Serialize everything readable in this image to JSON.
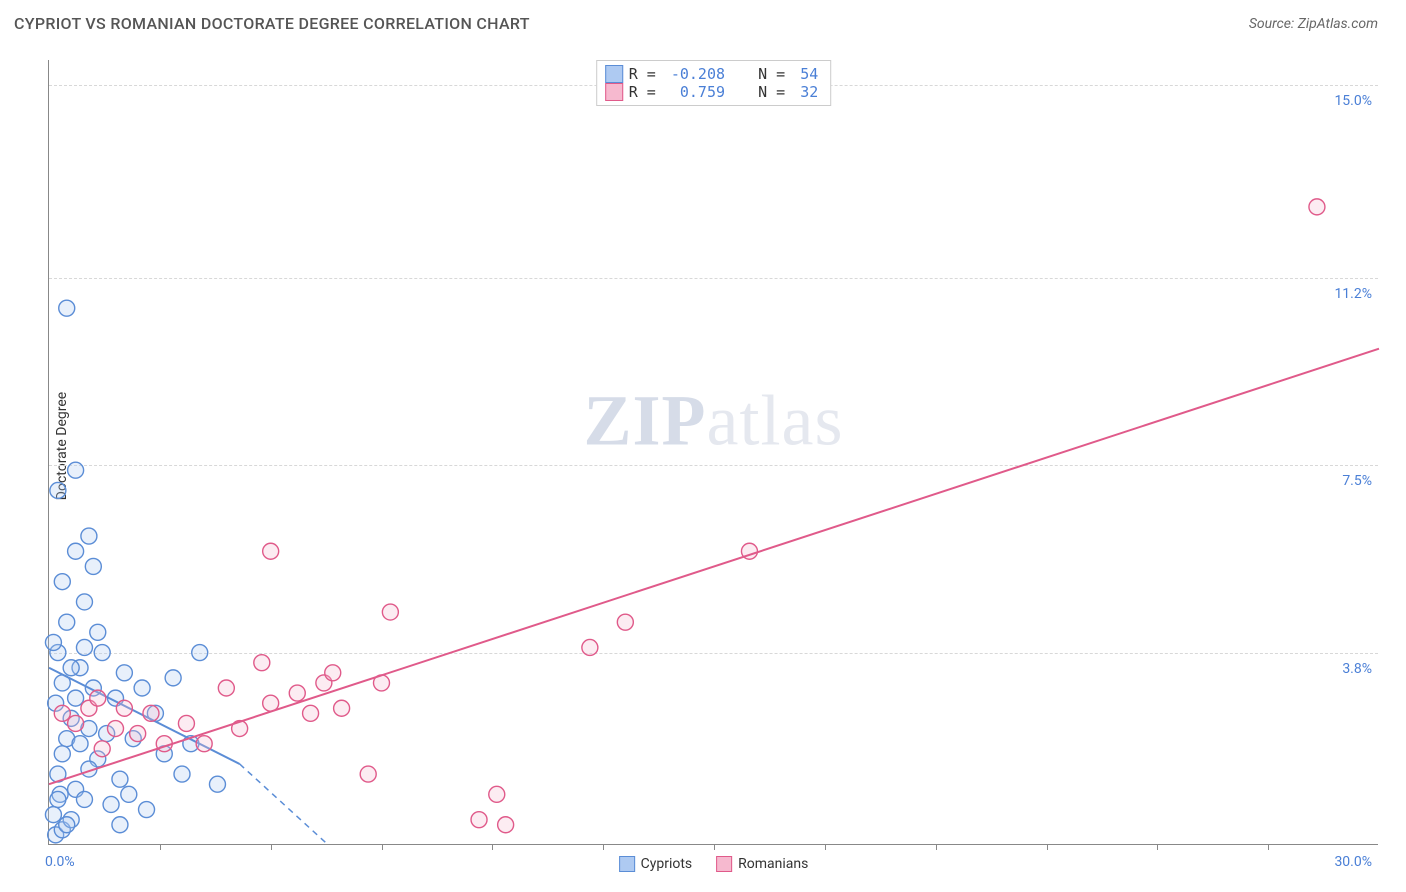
{
  "header": {
    "title": "CYPRIOT VS ROMANIAN DOCTORATE DEGREE CORRELATION CHART",
    "source": "Source: ZipAtlas.com"
  },
  "watermark": {
    "prefix": "ZIP",
    "suffix": "atlas"
  },
  "chart": {
    "type": "scatter",
    "y_axis_label": "Doctorate Degree",
    "xlim": [
      0,
      30
    ],
    "ylim": [
      0,
      15.5
    ],
    "x_origin_label": "0.0%",
    "x_max_label": "30.0%",
    "y_ticks": [
      {
        "v": 3.8,
        "label": "3.8%"
      },
      {
        "v": 7.5,
        "label": "7.5%"
      },
      {
        "v": 11.2,
        "label": "11.2%"
      },
      {
        "v": 15.0,
        "label": "15.0%"
      }
    ],
    "x_tick_positions": [
      2.5,
      5,
      7.5,
      10,
      12.5,
      15,
      17.5,
      20,
      22.5,
      25,
      27.5
    ],
    "gridline_color": "#d8d8d8",
    "axis_color": "#888888",
    "background_color": "#ffffff",
    "marker_radius": 8,
    "marker_fill_opacity": 0.28,
    "marker_stroke_width": 1.4,
    "series": [
      {
        "key": "cypriots",
        "label": "Cypriots",
        "color": "#5b8dd6",
        "fill": "#aecaf2",
        "R": "-0.208",
        "N": "54",
        "trend": {
          "x1": 0,
          "y1": 3.5,
          "x2": 4.3,
          "y2": 1.6,
          "dash_x2": 6.3,
          "dash_y2": 0
        },
        "points": [
          [
            0.15,
            0.2
          ],
          [
            0.3,
            0.3
          ],
          [
            0.1,
            0.6
          ],
          [
            0.25,
            1.0
          ],
          [
            0.5,
            0.5
          ],
          [
            0.2,
            1.4
          ],
          [
            0.3,
            1.8
          ],
          [
            0.6,
            1.1
          ],
          [
            0.4,
            2.1
          ],
          [
            0.8,
            0.9
          ],
          [
            0.5,
            2.5
          ],
          [
            0.15,
            2.8
          ],
          [
            0.6,
            2.9
          ],
          [
            0.9,
            2.3
          ],
          [
            0.3,
            3.2
          ],
          [
            0.7,
            3.5
          ],
          [
            0.2,
            3.8
          ],
          [
            1.1,
            1.7
          ],
          [
            1.3,
            2.2
          ],
          [
            1.0,
            3.1
          ],
          [
            1.4,
            0.8
          ],
          [
            1.6,
            1.3
          ],
          [
            1.2,
            3.8
          ],
          [
            1.5,
            2.9
          ],
          [
            1.8,
            1.0
          ],
          [
            1.9,
            2.1
          ],
          [
            2.2,
            0.7
          ],
          [
            1.1,
            4.2
          ],
          [
            0.4,
            4.4
          ],
          [
            0.8,
            4.8
          ],
          [
            0.3,
            5.2
          ],
          [
            1.0,
            5.5
          ],
          [
            0.6,
            5.8
          ],
          [
            0.9,
            6.1
          ],
          [
            0.2,
            7.0
          ],
          [
            0.6,
            7.4
          ],
          [
            3.0,
            1.4
          ],
          [
            3.4,
            3.8
          ],
          [
            3.2,
            2.0
          ],
          [
            2.8,
            3.3
          ],
          [
            3.8,
            1.2
          ],
          [
            0.4,
            10.6
          ],
          [
            2.1,
            3.1
          ],
          [
            2.4,
            2.6
          ],
          [
            1.7,
            3.4
          ],
          [
            0.7,
            2.0
          ],
          [
            0.9,
            1.5
          ],
          [
            0.2,
            0.9
          ],
          [
            0.5,
            3.5
          ],
          [
            0.1,
            4.0
          ],
          [
            0.4,
            0.4
          ],
          [
            1.6,
            0.4
          ],
          [
            2.6,
            1.8
          ],
          [
            0.8,
            3.9
          ]
        ]
      },
      {
        "key": "romanians",
        "label": "Romanians",
        "color": "#e05a8a",
        "fill": "#f6b9cf",
        "R": "0.759",
        "N": "32",
        "trend": {
          "x1": 0,
          "y1": 1.2,
          "x2": 30,
          "y2": 9.8
        },
        "points": [
          [
            0.3,
            2.6
          ],
          [
            0.6,
            2.4
          ],
          [
            0.9,
            2.7
          ],
          [
            1.2,
            1.9
          ],
          [
            1.5,
            2.3
          ],
          [
            1.1,
            2.9
          ],
          [
            1.7,
            2.7
          ],
          [
            2.0,
            2.2
          ],
          [
            2.3,
            2.6
          ],
          [
            2.6,
            2.0
          ],
          [
            3.1,
            2.4
          ],
          [
            3.5,
            2.0
          ],
          [
            4.0,
            3.1
          ],
          [
            4.3,
            2.3
          ],
          [
            5.0,
            2.8
          ],
          [
            5.0,
            5.8
          ],
          [
            5.6,
            3.0
          ],
          [
            5.9,
            2.6
          ],
          [
            6.2,
            3.2
          ],
          [
            6.6,
            2.7
          ],
          [
            6.4,
            3.4
          ],
          [
            7.2,
            1.4
          ],
          [
            7.5,
            3.2
          ],
          [
            7.7,
            4.6
          ],
          [
            9.7,
            0.5
          ],
          [
            10.1,
            1.0
          ],
          [
            12.2,
            3.9
          ],
          [
            13.0,
            4.4
          ],
          [
            15.8,
            5.8
          ],
          [
            10.3,
            0.4
          ],
          [
            28.6,
            12.6
          ],
          [
            4.8,
            3.6
          ]
        ]
      }
    ],
    "bottom_legend": [
      {
        "label": "Cypriots",
        "color": "#5b8dd6",
        "fill": "#aecaf2"
      },
      {
        "label": "Romanians",
        "color": "#e05a8a",
        "fill": "#f6b9cf"
      }
    ]
  }
}
